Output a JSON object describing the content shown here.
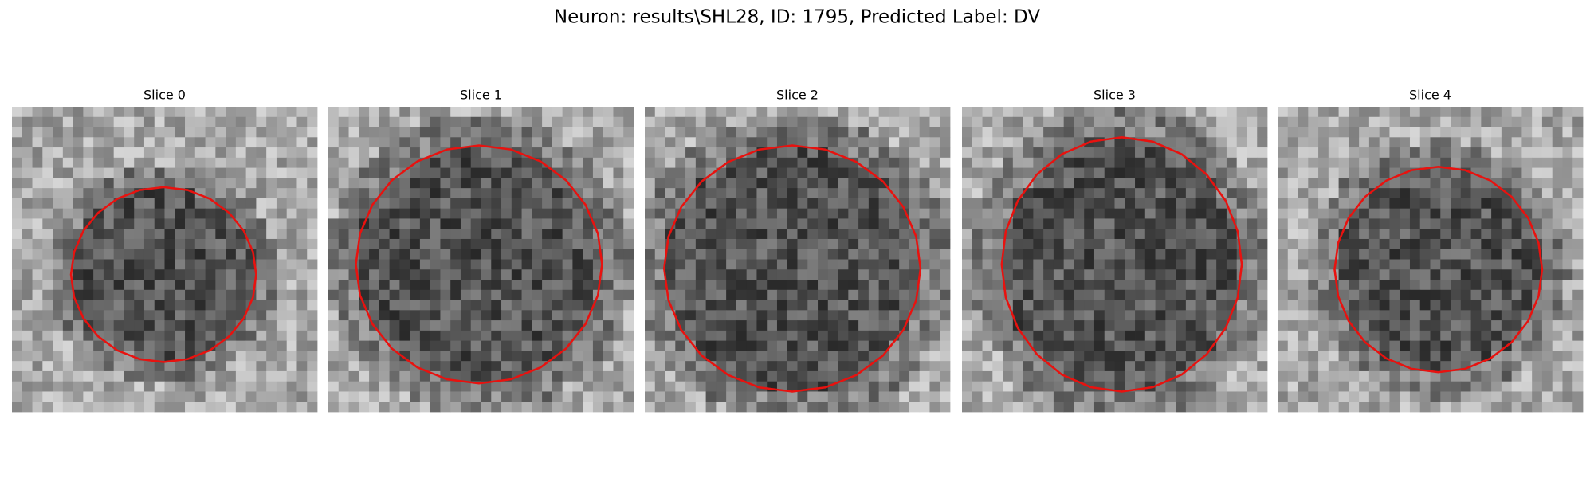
{
  "title": "Neuron: results\\SHL28, ID: 1795, Predicted Label: DV",
  "panels": [
    {
      "title": "Slice 0"
    },
    {
      "title": "Slice 1"
    },
    {
      "title": "Slice 2"
    },
    {
      "title": "Slice 3"
    },
    {
      "title": "Slice 4"
    }
  ]
}
